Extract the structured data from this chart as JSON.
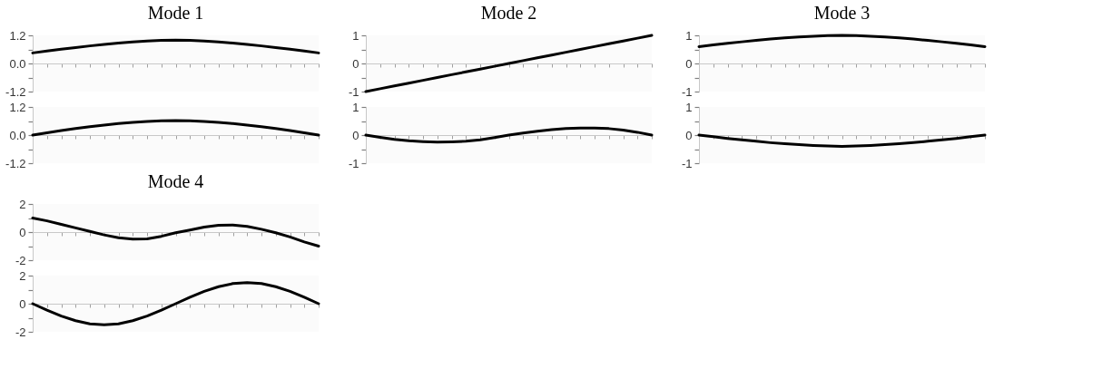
{
  "chart_data": [
    {
      "type": "line",
      "title": "Mode 1",
      "categories": [
        null,
        null,
        null,
        null,
        null,
        null,
        null,
        null,
        null,
        null,
        null,
        null,
        null,
        null,
        null,
        null,
        null,
        null,
        null,
        null,
        null
      ],
      "series": [
        {
          "color": "#000000",
          "values": [
            0.45,
            0.53,
            0.61,
            0.68,
            0.75,
            0.81,
            0.87,
            0.92,
            0.96,
            0.99,
            1.0,
            0.99,
            0.96,
            0.92,
            0.87,
            0.81,
            0.75,
            0.68,
            0.61,
            0.53,
            0.45
          ]
        }
      ],
      "ylim": [
        -1.2,
        1.2
      ],
      "yticks": [
        {
          "value": -1.2,
          "label": "-1.2"
        },
        {
          "value": -0.6,
          "label": null
        },
        {
          "value": 0,
          "label": "0.0"
        },
        {
          "value": 0.6,
          "label": null
        },
        {
          "value": 1.2,
          "label": "1.2"
        }
      ],
      "tick_labels": "y",
      "legend": false
    },
    {
      "type": "line",
      "categories": [
        null,
        null,
        null,
        null,
        null,
        null,
        null,
        null,
        null,
        null,
        null,
        null,
        null,
        null,
        null,
        null,
        null,
        null,
        null,
        null,
        null
      ],
      "series": [
        {
          "color": "#000000",
          "values": [
            0,
            0.1,
            0.19,
            0.28,
            0.36,
            0.43,
            0.49,
            0.54,
            0.58,
            0.61,
            0.62,
            0.61,
            0.58,
            0.54,
            0.49,
            0.43,
            0.36,
            0.28,
            0.19,
            0.1,
            0
          ]
        }
      ],
      "ylim": [
        -1.2,
        1.2
      ],
      "yticks": [
        {
          "value": -1.2,
          "label": "-1.2"
        },
        {
          "value": -0.6,
          "label": null
        },
        {
          "value": 0,
          "label": "0.0"
        },
        {
          "value": 0.6,
          "label": null
        },
        {
          "value": 1.2,
          "label": "1.2"
        }
      ],
      "tick_labels": "y",
      "legend": false
    },
    {
      "type": "line",
      "title": "Mode 2",
      "categories": [
        null,
        null,
        null,
        null,
        null,
        null,
        null,
        null,
        null,
        null,
        null,
        null,
        null,
        null,
        null,
        null,
        null,
        null,
        null,
        null,
        null
      ],
      "series": [
        {
          "color": "#000000",
          "values": [
            -1,
            -0.9,
            -0.8,
            -0.7,
            -0.6,
            -0.5,
            -0.4,
            -0.3,
            -0.2,
            -0.1,
            0,
            0.1,
            0.2,
            0.3,
            0.4,
            0.5,
            0.6,
            0.7,
            0.8,
            0.9,
            1
          ]
        }
      ],
      "ylim": [
        -1,
        1
      ],
      "yticks": [
        -1,
        {
          "value": -0.5,
          "label": null
        },
        0,
        {
          "value": 0.5,
          "label": null
        },
        1
      ],
      "tick_labels": "y",
      "legend": false
    },
    {
      "type": "line",
      "categories": [
        null,
        null,
        null,
        null,
        null,
        null,
        null,
        null,
        null,
        null,
        null,
        null,
        null,
        null,
        null,
        null,
        null,
        null,
        null,
        null,
        null
      ],
      "series": [
        {
          "color": "#000000",
          "values": [
            0,
            -0.08,
            -0.15,
            -0.2,
            -0.23,
            -0.25,
            -0.24,
            -0.22,
            -0.17,
            -0.09,
            0,
            0.07,
            0.14,
            0.19,
            0.23,
            0.25,
            0.25,
            0.23,
            0.18,
            0.1,
            0
          ]
        }
      ],
      "ylim": [
        -1,
        1
      ],
      "yticks": [
        -1,
        {
          "value": -0.5,
          "label": null
        },
        0,
        {
          "value": 0.5,
          "label": null
        },
        1
      ],
      "tick_labels": "y",
      "legend": false
    },
    {
      "type": "line",
      "title": "Mode 3",
      "categories": [
        null,
        null,
        null,
        null,
        null,
        null,
        null,
        null,
        null,
        null,
        null,
        null,
        null,
        null,
        null,
        null,
        null,
        null,
        null,
        null,
        null
      ],
      "series": [
        {
          "color": "#000000",
          "values": [
            0.6,
            0.66,
            0.72,
            0.77,
            0.82,
            0.87,
            0.91,
            0.94,
            0.97,
            0.99,
            1.0,
            0.99,
            0.97,
            0.94,
            0.91,
            0.87,
            0.82,
            0.77,
            0.72,
            0.66,
            0.6
          ]
        }
      ],
      "ylim": [
        -1,
        1
      ],
      "yticks": [
        -1,
        {
          "value": -0.5,
          "label": null
        },
        0,
        {
          "value": 0.5,
          "label": null
        },
        1
      ],
      "tick_labels": "y",
      "legend": false
    },
    {
      "type": "line",
      "categories": [
        null,
        null,
        null,
        null,
        null,
        null,
        null,
        null,
        null,
        null,
        null,
        null,
        null,
        null,
        null,
        null,
        null,
        null,
        null,
        null,
        null
      ],
      "series": [
        {
          "color": "#000000",
          "values": [
            0,
            -0.06,
            -0.12,
            -0.17,
            -0.22,
            -0.27,
            -0.31,
            -0.34,
            -0.37,
            -0.39,
            -0.4,
            -0.39,
            -0.37,
            -0.34,
            -0.31,
            -0.27,
            -0.22,
            -0.17,
            -0.12,
            -0.06,
            0
          ]
        }
      ],
      "ylim": [
        -1,
        1
      ],
      "yticks": [
        -1,
        {
          "value": -0.5,
          "label": null
        },
        0,
        {
          "value": 0.5,
          "label": null
        },
        1
      ],
      "tick_labels": "y",
      "legend": false
    },
    {
      "type": "line",
      "title": "Mode 4",
      "categories": [
        null,
        null,
        null,
        null,
        null,
        null,
        null,
        null,
        null,
        null,
        null,
        null,
        null,
        null,
        null,
        null,
        null,
        null,
        null,
        null,
        null
      ],
      "series": [
        {
          "color": "#000000",
          "values": [
            1.0,
            0.8,
            0.55,
            0.3,
            0.05,
            -0.2,
            -0.4,
            -0.5,
            -0.48,
            -0.3,
            -0.05,
            0.15,
            0.35,
            0.48,
            0.5,
            0.4,
            0.2,
            -0.05,
            -0.35,
            -0.7,
            -1.0
          ]
        }
      ],
      "ylim": [
        -2,
        2
      ],
      "yticks": [
        -2,
        {
          "value": -1,
          "label": null
        },
        0,
        {
          "value": 1,
          "label": null
        },
        2
      ],
      "tick_labels": "y",
      "legend": false
    },
    {
      "type": "line",
      "categories": [
        null,
        null,
        null,
        null,
        null,
        null,
        null,
        null,
        null,
        null,
        null,
        null,
        null,
        null,
        null,
        null,
        null,
        null,
        null,
        null,
        null
      ],
      "series": [
        {
          "color": "#000000",
          "values": [
            0,
            -0.46,
            -0.88,
            -1.21,
            -1.43,
            -1.5,
            -1.43,
            -1.21,
            -0.88,
            -0.46,
            0,
            0.46,
            0.88,
            1.21,
            1.43,
            1.5,
            1.43,
            1.21,
            0.88,
            0.46,
            0
          ]
        }
      ],
      "ylim": [
        -2,
        2
      ],
      "yticks": [
        -2,
        {
          "value": -1,
          "label": null
        },
        0,
        {
          "value": 1,
          "label": null
        },
        2
      ],
      "tick_labels": "y",
      "legend": false
    }
  ]
}
